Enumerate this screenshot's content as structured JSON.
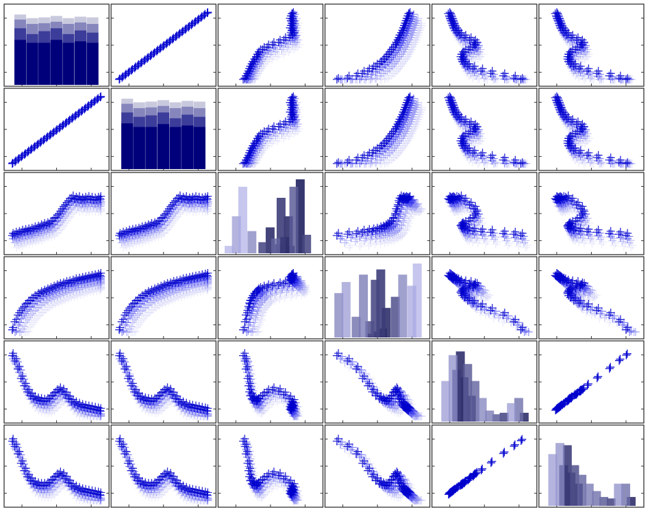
{
  "chart_data": {
    "type": "scatter_matrix",
    "grid": false,
    "legend": "none",
    "title": "",
    "n_vars": 6,
    "marker": "plus",
    "groups": 4,
    "group_colors": [
      "#0000cc",
      "#3a3aee",
      "#8080f2",
      "#c8c8f7"
    ],
    "group_alphas": [
      0.85,
      0.6,
      0.45,
      0.35
    ],
    "hist_colors": [
      "#00007a",
      "#3c3c9a",
      "#8686bd",
      "#c9c9de",
      "#e4e4ee"
    ],
    "var_series": {
      "v1": [
        0.0,
        0.036,
        0.071,
        0.107,
        0.143,
        0.179,
        0.214,
        0.25,
        0.286,
        0.321,
        0.357,
        0.393,
        0.429,
        0.464,
        0.5,
        0.536,
        0.571,
        0.607,
        0.643,
        0.679,
        0.714,
        0.75,
        0.786,
        0.821,
        0.857,
        0.893,
        0.929,
        0.964,
        1.0
      ],
      "v2": [
        0.0,
        0.036,
        0.071,
        0.107,
        0.143,
        0.179,
        0.214,
        0.25,
        0.286,
        0.321,
        0.357,
        0.393,
        0.429,
        0.464,
        0.5,
        0.536,
        0.571,
        0.607,
        0.643,
        0.679,
        0.714,
        0.75,
        0.786,
        0.821,
        0.857,
        0.893,
        0.929,
        0.964,
        1.0
      ],
      "v3": [
        0.2,
        0.22,
        0.23,
        0.25,
        0.26,
        0.27,
        0.28,
        0.3,
        0.31,
        0.33,
        0.35,
        0.36,
        0.38,
        0.42,
        0.47,
        0.53,
        0.6,
        0.66,
        0.72,
        0.76,
        0.74,
        0.75,
        0.73,
        0.74,
        0.75,
        0.74,
        0.73,
        0.74,
        0.75
      ],
      "v4": [
        0.05,
        0.17,
        0.27,
        0.34,
        0.4,
        0.45,
        0.49,
        0.53,
        0.56,
        0.59,
        0.61,
        0.63,
        0.65,
        0.67,
        0.69,
        0.71,
        0.72,
        0.74,
        0.75,
        0.76,
        0.78,
        0.79,
        0.8,
        0.81,
        0.82,
        0.83,
        0.84,
        0.85,
        0.86
      ],
      "v5": [
        0.92,
        0.84,
        0.72,
        0.58,
        0.47,
        0.38,
        0.32,
        0.28,
        0.26,
        0.25,
        0.24,
        0.25,
        0.28,
        0.33,
        0.38,
        0.41,
        0.39,
        0.34,
        0.28,
        0.23,
        0.2,
        0.18,
        0.16,
        0.15,
        0.14,
        0.13,
        0.12,
        0.11,
        0.1
      ],
      "v6": [
        0.9,
        0.82,
        0.71,
        0.57,
        0.46,
        0.37,
        0.31,
        0.27,
        0.25,
        0.24,
        0.24,
        0.25,
        0.28,
        0.33,
        0.38,
        0.41,
        0.39,
        0.34,
        0.28,
        0.23,
        0.2,
        0.18,
        0.16,
        0.15,
        0.14,
        0.13,
        0.12,
        0.11,
        0.1
      ]
    },
    "group_shifts": [
      [
        0.0,
        0.0
      ],
      [
        0.04,
        -0.08
      ],
      [
        0.09,
        -0.18
      ],
      [
        0.14,
        -0.3
      ]
    ],
    "histograms": [
      {
        "var": "v1",
        "bins": [
          [
            0.62,
            0.58,
            0.58,
            0.62,
            0.58,
            0.6,
            0.58
          ],
          [
            0.78,
            0.7,
            0.74,
            0.78,
            0.7,
            0.75,
            0.72
          ],
          [
            0.9,
            0.84,
            0.85,
            0.87,
            0.84,
            0.86,
            0.84
          ],
          [
            0.97,
            0.92,
            0.93,
            0.95,
            0.92,
            0.94,
            0.93
          ]
        ]
      },
      {
        "var": "v2",
        "bins": [
          [
            0.63,
            0.58,
            0.58,
            0.62,
            0.58,
            0.6,
            0.58
          ],
          [
            0.78,
            0.72,
            0.74,
            0.78,
            0.7,
            0.75,
            0.72
          ],
          [
            0.9,
            0.84,
            0.85,
            0.87,
            0.84,
            0.86,
            0.84
          ],
          [
            0.97,
            0.92,
            0.93,
            0.95,
            0.92,
            0.94,
            0.93
          ]
        ]
      },
      {
        "var": "v3",
        "bars": [
          [
            0.05,
            0.1,
            0.3
          ],
          [
            0.13,
            0.5,
            0.4
          ],
          [
            0.2,
            0.9,
            0.3
          ],
          [
            0.3,
            0.3,
            0.5
          ],
          [
            0.42,
            0.15,
            0.8
          ],
          [
            0.5,
            0.35,
            0.9
          ],
          [
            0.56,
            0.2,
            0.65
          ],
          [
            0.62,
            0.75,
            0.85
          ],
          [
            0.7,
            0.5,
            0.9
          ],
          [
            0.76,
            0.9,
            0.7
          ],
          [
            0.83,
            1.0,
            0.95
          ],
          [
            0.9,
            0.25,
            0.8
          ],
          [
            0.6,
            0.12,
            0.9
          ],
          [
            0.66,
            0.22,
            0.95
          ],
          [
            0.72,
            0.1,
            1.0
          ]
        ]
      },
      {
        "var": "v4",
        "bars": [
          [
            0.08,
            0.6,
            0.5
          ],
          [
            0.16,
            0.75,
            0.4
          ],
          [
            0.27,
            0.28,
            0.6
          ],
          [
            0.35,
            0.85,
            0.55
          ],
          [
            0.42,
            0.22,
            0.75
          ],
          [
            0.48,
            0.78,
            0.8
          ],
          [
            0.54,
            0.92,
            0.85
          ],
          [
            0.6,
            0.4,
            0.9
          ],
          [
            0.7,
            0.55,
            0.75
          ],
          [
            0.78,
            0.85,
            0.5
          ],
          [
            0.88,
            0.7,
            0.35
          ],
          [
            0.94,
            1.0,
            0.3
          ],
          [
            0.5,
            0.08,
            1.0
          ],
          [
            0.56,
            0.12,
            1.0
          ],
          [
            0.44,
            0.05,
            1.0
          ]
        ]
      },
      {
        "var": "v5",
        "bars": [
          [
            0.08,
            0.55,
            0.4
          ],
          [
            0.16,
            0.9,
            0.45
          ],
          [
            0.24,
            0.95,
            0.9
          ],
          [
            0.32,
            0.78,
            0.7
          ],
          [
            0.4,
            0.55,
            0.65
          ],
          [
            0.48,
            0.32,
            0.5
          ],
          [
            0.56,
            0.15,
            0.55
          ],
          [
            0.64,
            0.1,
            0.7
          ],
          [
            0.72,
            0.12,
            0.8
          ],
          [
            0.8,
            0.25,
            0.4
          ],
          [
            0.88,
            0.32,
            0.6
          ],
          [
            0.94,
            0.12,
            0.9
          ],
          [
            0.2,
            0.7,
            0.85
          ],
          [
            0.28,
            0.6,
            0.95
          ],
          [
            0.36,
            0.35,
            1.0
          ]
        ]
      },
      {
        "var": "v6",
        "bars": [
          [
            0.08,
            0.7,
            0.4
          ],
          [
            0.16,
            0.85,
            0.45
          ],
          [
            0.24,
            0.82,
            0.85
          ],
          [
            0.32,
            0.55,
            0.75
          ],
          [
            0.4,
            0.42,
            0.65
          ],
          [
            0.48,
            0.3,
            0.55
          ],
          [
            0.56,
            0.2,
            0.6
          ],
          [
            0.64,
            0.12,
            0.7
          ],
          [
            0.72,
            0.1,
            0.8
          ],
          [
            0.8,
            0.3,
            0.45
          ],
          [
            0.88,
            0.3,
            0.6
          ],
          [
            0.94,
            0.12,
            0.9
          ],
          [
            0.2,
            0.55,
            0.9
          ],
          [
            0.28,
            0.45,
            0.95
          ],
          [
            0.36,
            0.3,
            1.0
          ]
        ]
      }
    ]
  }
}
